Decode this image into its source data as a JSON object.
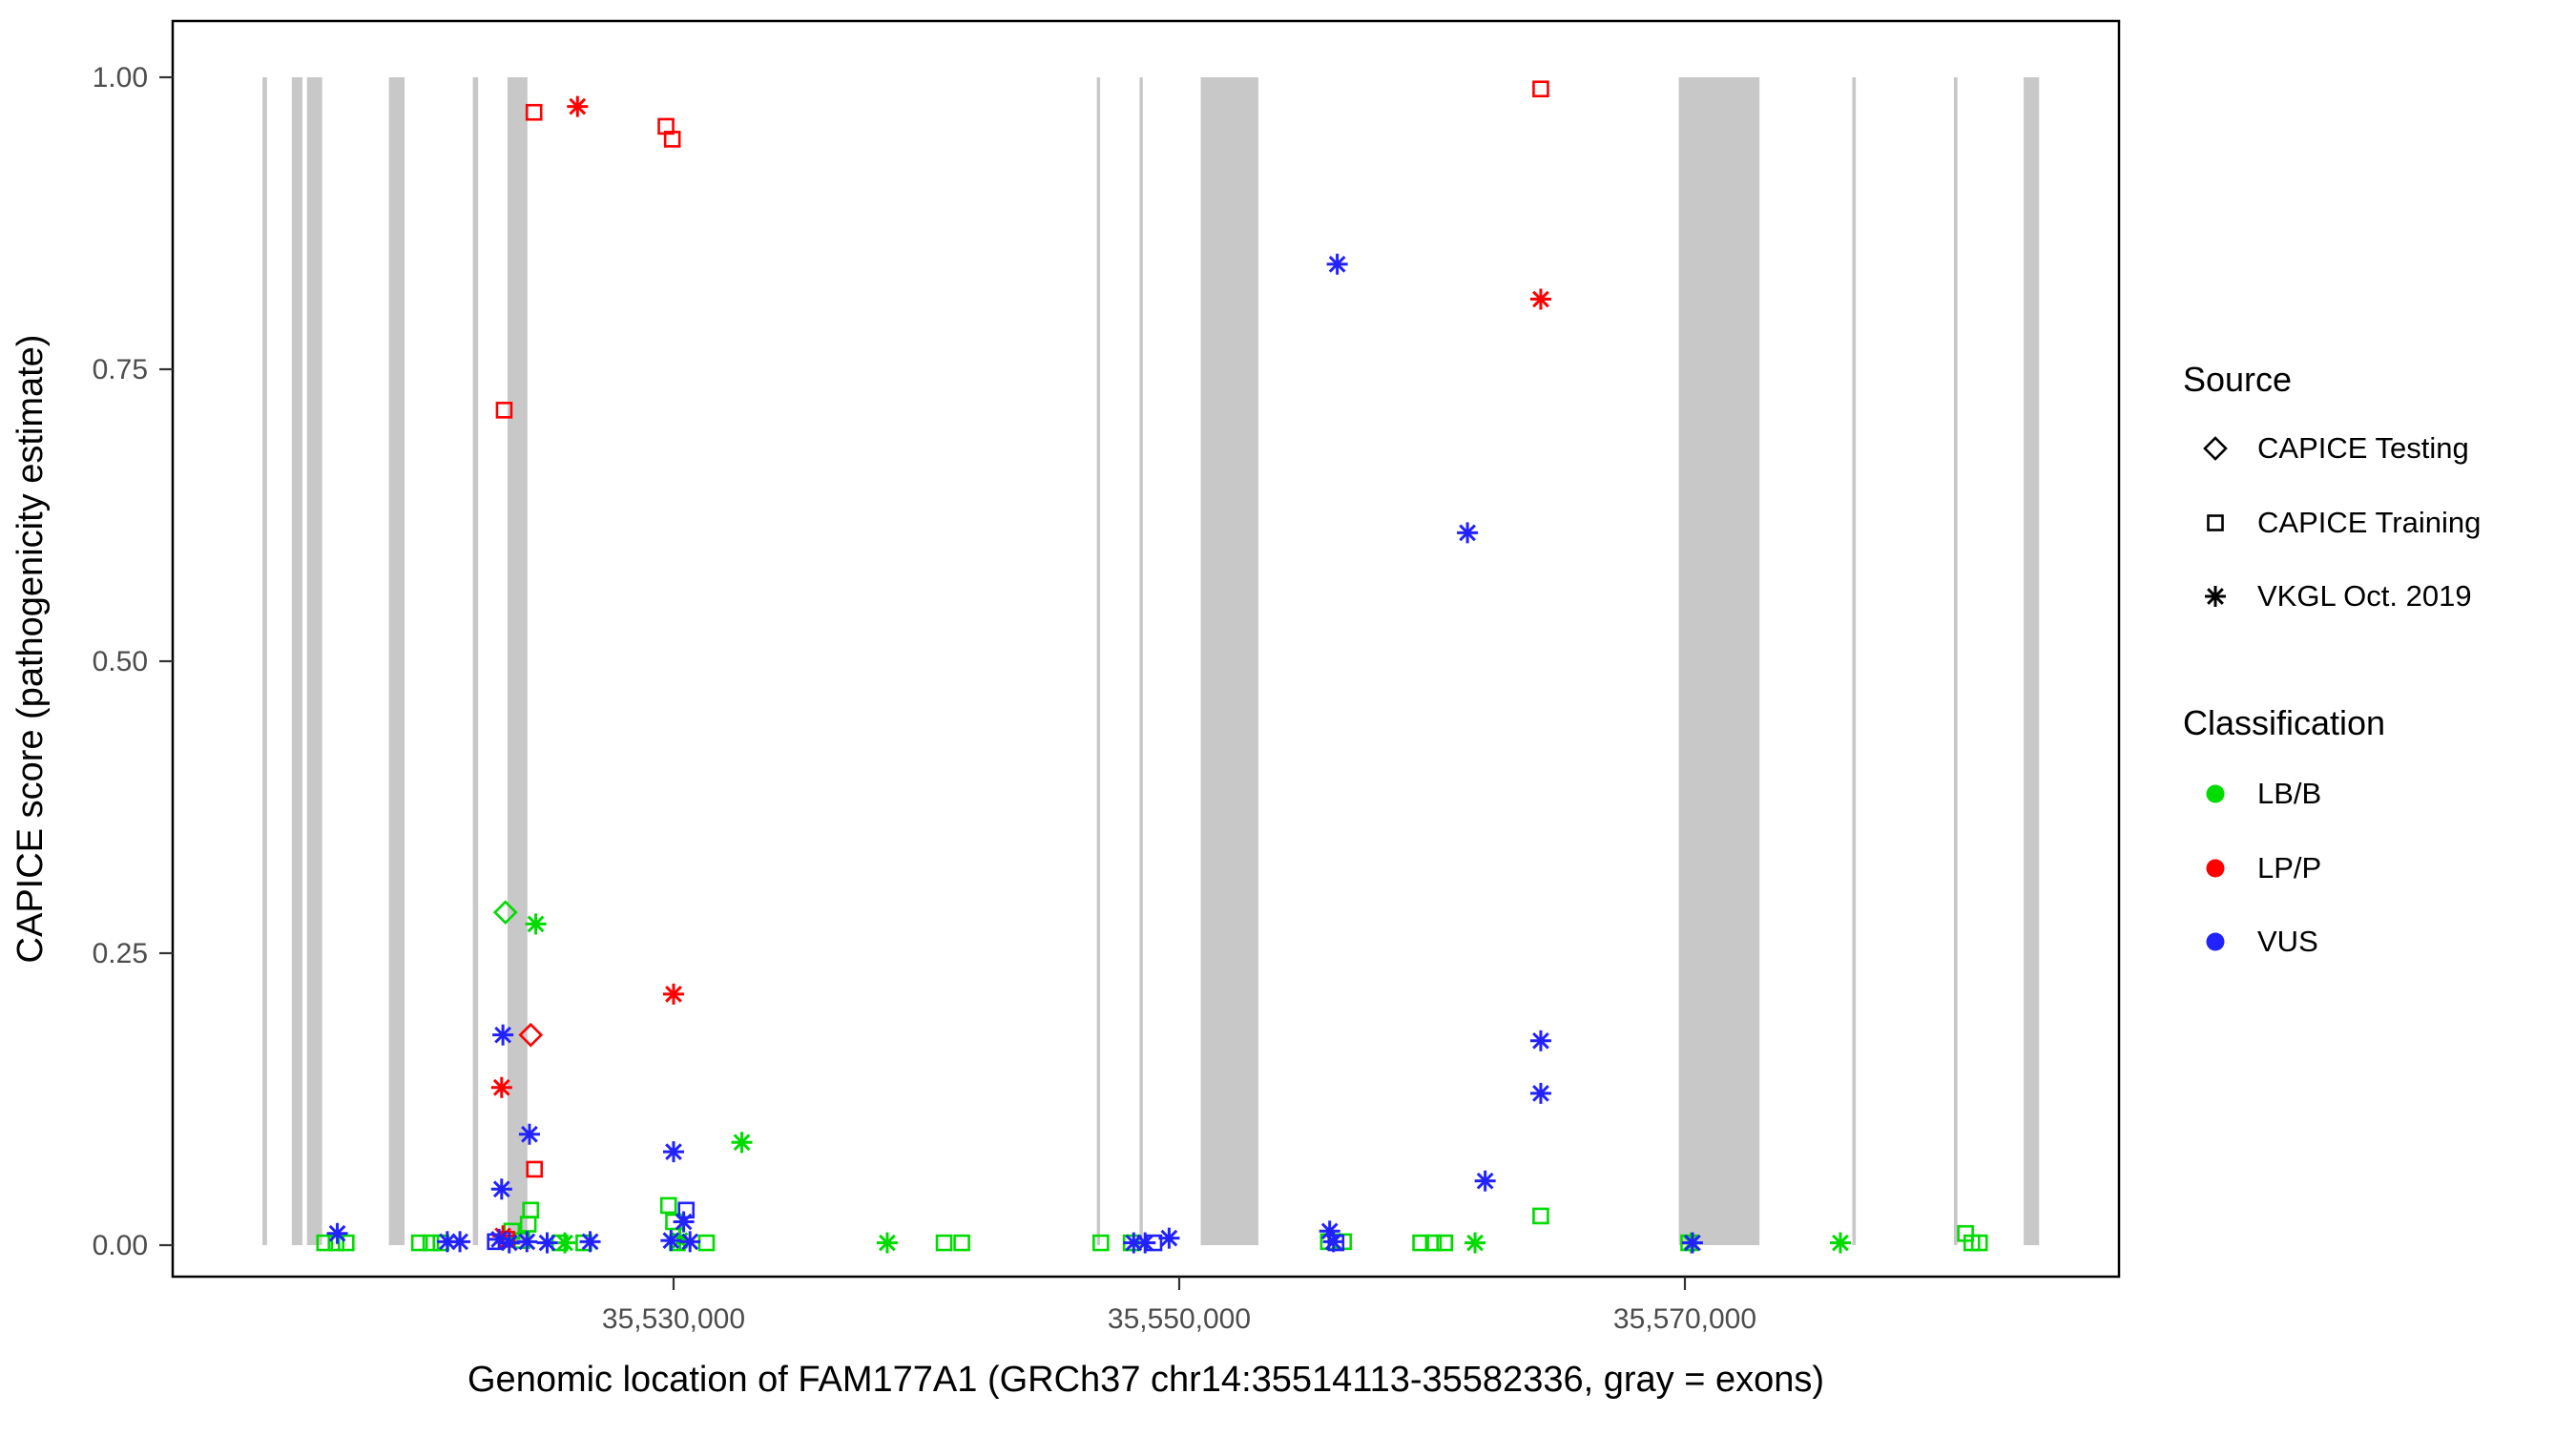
{
  "chart_data": {
    "type": "scatter",
    "title": "",
    "xlabel": "Genomic location of FAM177A1 (GRCh37 chr14:35514113-35582336, gray = exons)",
    "ylabel": "CAPICE score (pathogenicity estimate)",
    "xlim": [
      35510189,
      35587170
    ],
    "ylim": [
      0,
      1
    ],
    "x_ticks": [
      {
        "value": 35530000,
        "label": "35,530,000"
      },
      {
        "value": 35550000,
        "label": "35,550,000"
      },
      {
        "value": 35570000,
        "label": "35,570,000"
      }
    ],
    "y_ticks": [
      {
        "value": 0.0,
        "label": "0.00"
      },
      {
        "value": 0.25,
        "label": "0.25"
      },
      {
        "value": 0.5,
        "label": "0.50"
      },
      {
        "value": 0.75,
        "label": "0.75"
      },
      {
        "value": 1.0,
        "label": "1.00"
      }
    ],
    "exon_color": "#c8c8c8",
    "exons": [
      [
        35513740,
        35513920
      ],
      [
        35514900,
        35515320
      ],
      [
        35515500,
        35516100
      ],
      [
        35518740,
        35519360
      ],
      [
        35522060,
        35522270
      ],
      [
        35523430,
        35524220
      ],
      [
        35546740,
        35546870
      ],
      [
        35548430,
        35548560
      ],
      [
        35550850,
        35553130
      ],
      [
        35569760,
        35572950
      ],
      [
        35576620,
        35576760
      ],
      [
        35580640,
        35580780
      ],
      [
        35583400,
        35584010
      ]
    ],
    "colors": {
      "LB/B": "#00db00",
      "LP/P": "#ff0000",
      "VUS": "#2222ff"
    },
    "legend": {
      "source_title": "Source",
      "sources": [
        {
          "label": "CAPICE Testing",
          "shape": "diamond"
        },
        {
          "label": "CAPICE Training",
          "shape": "square"
        },
        {
          "label": "VKGL Oct. 2019",
          "shape": "asterisk"
        }
      ],
      "classification_title": "Classification",
      "classifications": [
        {
          "label": "LB/B",
          "color": "#00db00"
        },
        {
          "label": "LP/P",
          "color": "#ff0000"
        },
        {
          "label": "VUS",
          "color": "#2222ff"
        }
      ]
    },
    "series": [
      {
        "source": "CAPICE Testing",
        "classification": "LB/B",
        "shape": "diamond",
        "color": "#00db00",
        "points": [
          [
            35523350,
            0.285
          ]
        ]
      },
      {
        "source": "CAPICE Testing",
        "classification": "LP/P",
        "shape": "diamond",
        "color": "#ff0000",
        "points": [
          [
            35524350,
            0.18
          ]
        ]
      },
      {
        "source": "CAPICE Training",
        "classification": "LB/B",
        "shape": "square",
        "color": "#00db00",
        "points": [
          [
            35516200,
            0.002
          ],
          [
            35516650,
            0.002
          ],
          [
            35517050,
            0.002
          ],
          [
            35519950,
            0.002
          ],
          [
            35520400,
            0.002
          ],
          [
            35520800,
            0.002
          ],
          [
            35523600,
            0.012
          ],
          [
            35524000,
            0.004
          ],
          [
            35524250,
            0.018
          ],
          [
            35524350,
            0.03
          ],
          [
            35525500,
            0.002
          ],
          [
            35526450,
            0.002
          ],
          [
            35529800,
            0.034
          ],
          [
            35530000,
            0.02
          ],
          [
            35530150,
            0.002
          ],
          [
            35531300,
            0.002
          ],
          [
            35540700,
            0.002
          ],
          [
            35541400,
            0.002
          ],
          [
            35546900,
            0.002
          ],
          [
            35548100,
            0.002
          ],
          [
            35555900,
            0.003
          ],
          [
            35556500,
            0.003
          ],
          [
            35559550,
            0.002
          ],
          [
            35560050,
            0.002
          ],
          [
            35560500,
            0.002
          ],
          [
            35564300,
            0.025
          ],
          [
            35570150,
            0.002
          ],
          [
            35581100,
            0.01
          ],
          [
            35581350,
            0.002
          ],
          [
            35581650,
            0.002
          ]
        ]
      },
      {
        "source": "CAPICE Training",
        "classification": "LP/P",
        "shape": "square",
        "color": "#ff0000",
        "points": [
          [
            35523300,
            0.715
          ],
          [
            35523400,
            0.005
          ],
          [
            35524480,
            0.97
          ],
          [
            35524500,
            0.065
          ],
          [
            35529700,
            0.958
          ],
          [
            35529950,
            0.947
          ],
          [
            35564300,
            0.99
          ]
        ]
      },
      {
        "source": "CAPICE Training",
        "classification": "VUS",
        "shape": "square",
        "color": "#2222ff",
        "points": [
          [
            35522950,
            0.003
          ],
          [
            35530500,
            0.03
          ],
          [
            35549000,
            0.002
          ],
          [
            35556200,
            0.002
          ]
        ]
      },
      {
        "source": "VKGL Oct. 2019",
        "classification": "LB/B",
        "shape": "asterisk",
        "color": "#00db00",
        "points": [
          [
            35524550,
            0.275
          ],
          [
            35525700,
            0.002
          ],
          [
            35530250,
            0.004
          ],
          [
            35532700,
            0.088
          ],
          [
            35538450,
            0.002
          ],
          [
            35561700,
            0.002
          ],
          [
            35570250,
            0.002
          ],
          [
            35576150,
            0.002
          ]
        ]
      },
      {
        "source": "VKGL Oct. 2019",
        "classification": "LP/P",
        "shape": "asterisk",
        "color": "#ff0000",
        "points": [
          [
            35523200,
            0.135
          ],
          [
            35523250,
            0.008
          ],
          [
            35526200,
            0.975
          ],
          [
            35530000,
            0.215
          ],
          [
            35564300,
            0.81
          ]
        ]
      },
      {
        "source": "VKGL Oct. 2019",
        "classification": "VUS",
        "shape": "asterisk",
        "color": "#2222ff",
        "points": [
          [
            35516700,
            0.01
          ],
          [
            35521050,
            0.003
          ],
          [
            35521550,
            0.003
          ],
          [
            35523100,
            0.005
          ],
          [
            35523200,
            0.048
          ],
          [
            35523250,
            0.18
          ],
          [
            35523500,
            0.002
          ],
          [
            35524200,
            0.003
          ],
          [
            35524300,
            0.095
          ],
          [
            35525000,
            0.002
          ],
          [
            35526700,
            0.003
          ],
          [
            35529900,
            0.004
          ],
          [
            35530000,
            0.08
          ],
          [
            35530400,
            0.02
          ],
          [
            35530650,
            0.003
          ],
          [
            35548200,
            0.002
          ],
          [
            35548650,
            0.002
          ],
          [
            35549600,
            0.006
          ],
          [
            35555950,
            0.012
          ],
          [
            35556100,
            0.003
          ],
          [
            35556250,
            0.84
          ],
          [
            35561400,
            0.61
          ],
          [
            35562100,
            0.055
          ],
          [
            35564300,
            0.175
          ],
          [
            35564300,
            0.13
          ],
          [
            35570300,
            0.002
          ]
        ]
      }
    ]
  }
}
